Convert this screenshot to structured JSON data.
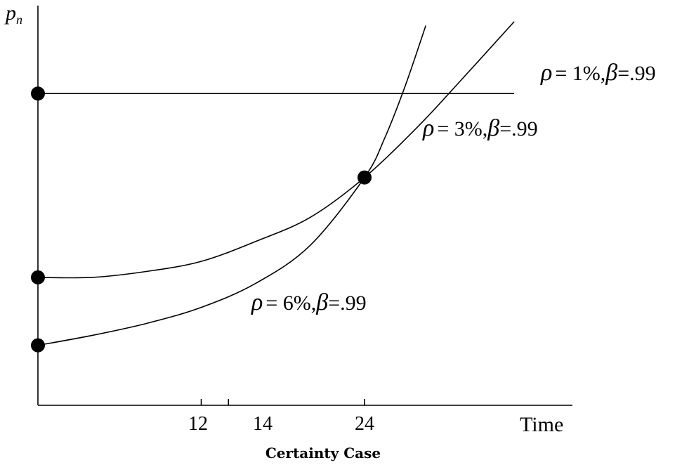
{
  "chart_data": {
    "type": "line",
    "caption": "Certainty Case",
    "ylabel": "p",
    "ylabel_sub": "n",
    "xlabel": "Time",
    "x_ticks": [
      "12",
      "14",
      "24"
    ],
    "series": [
      {
        "name": "ρ = 1%, β =.99",
        "name_parts": {
          "rho": "ρ",
          "rho_val": "= 1%,",
          "beta": "β",
          "beta_val": "=.99"
        },
        "points": [
          [
            0,
            0.78
          ],
          [
            35,
            0.78
          ]
        ]
      },
      {
        "name": "ρ = 3%, β =.99",
        "name_parts": {
          "rho": "ρ",
          "rho_val": "= 3%,",
          "beta": "β",
          "beta_val": "=.99"
        },
        "points": [
          [
            0,
            0.32
          ],
          [
            4,
            0.32
          ],
          [
            8,
            0.335
          ],
          [
            12,
            0.36
          ],
          [
            16,
            0.41
          ],
          [
            20,
            0.47
          ],
          [
            24,
            0.57
          ],
          [
            28,
            0.7
          ],
          [
            31,
            0.81
          ],
          [
            35,
            0.96
          ]
        ]
      },
      {
        "name": "ρ = 6%, β =.99",
        "name_parts": {
          "rho": "ρ",
          "rho_val": "= 6%,",
          "beta": "β",
          "beta_val": "=.99"
        },
        "points": [
          [
            0,
            0.15
          ],
          [
            4,
            0.175
          ],
          [
            8,
            0.205
          ],
          [
            12,
            0.245
          ],
          [
            16,
            0.305
          ],
          [
            20,
            0.4
          ],
          [
            24,
            0.57
          ],
          [
            25.5,
            0.67
          ],
          [
            27,
            0.8
          ],
          [
            28.5,
            0.95
          ]
        ]
      }
    ],
    "markers": [
      [
        0,
        0.78
      ],
      [
        0,
        0.32
      ],
      [
        0,
        0.15
      ],
      [
        24,
        0.57
      ]
    ]
  }
}
